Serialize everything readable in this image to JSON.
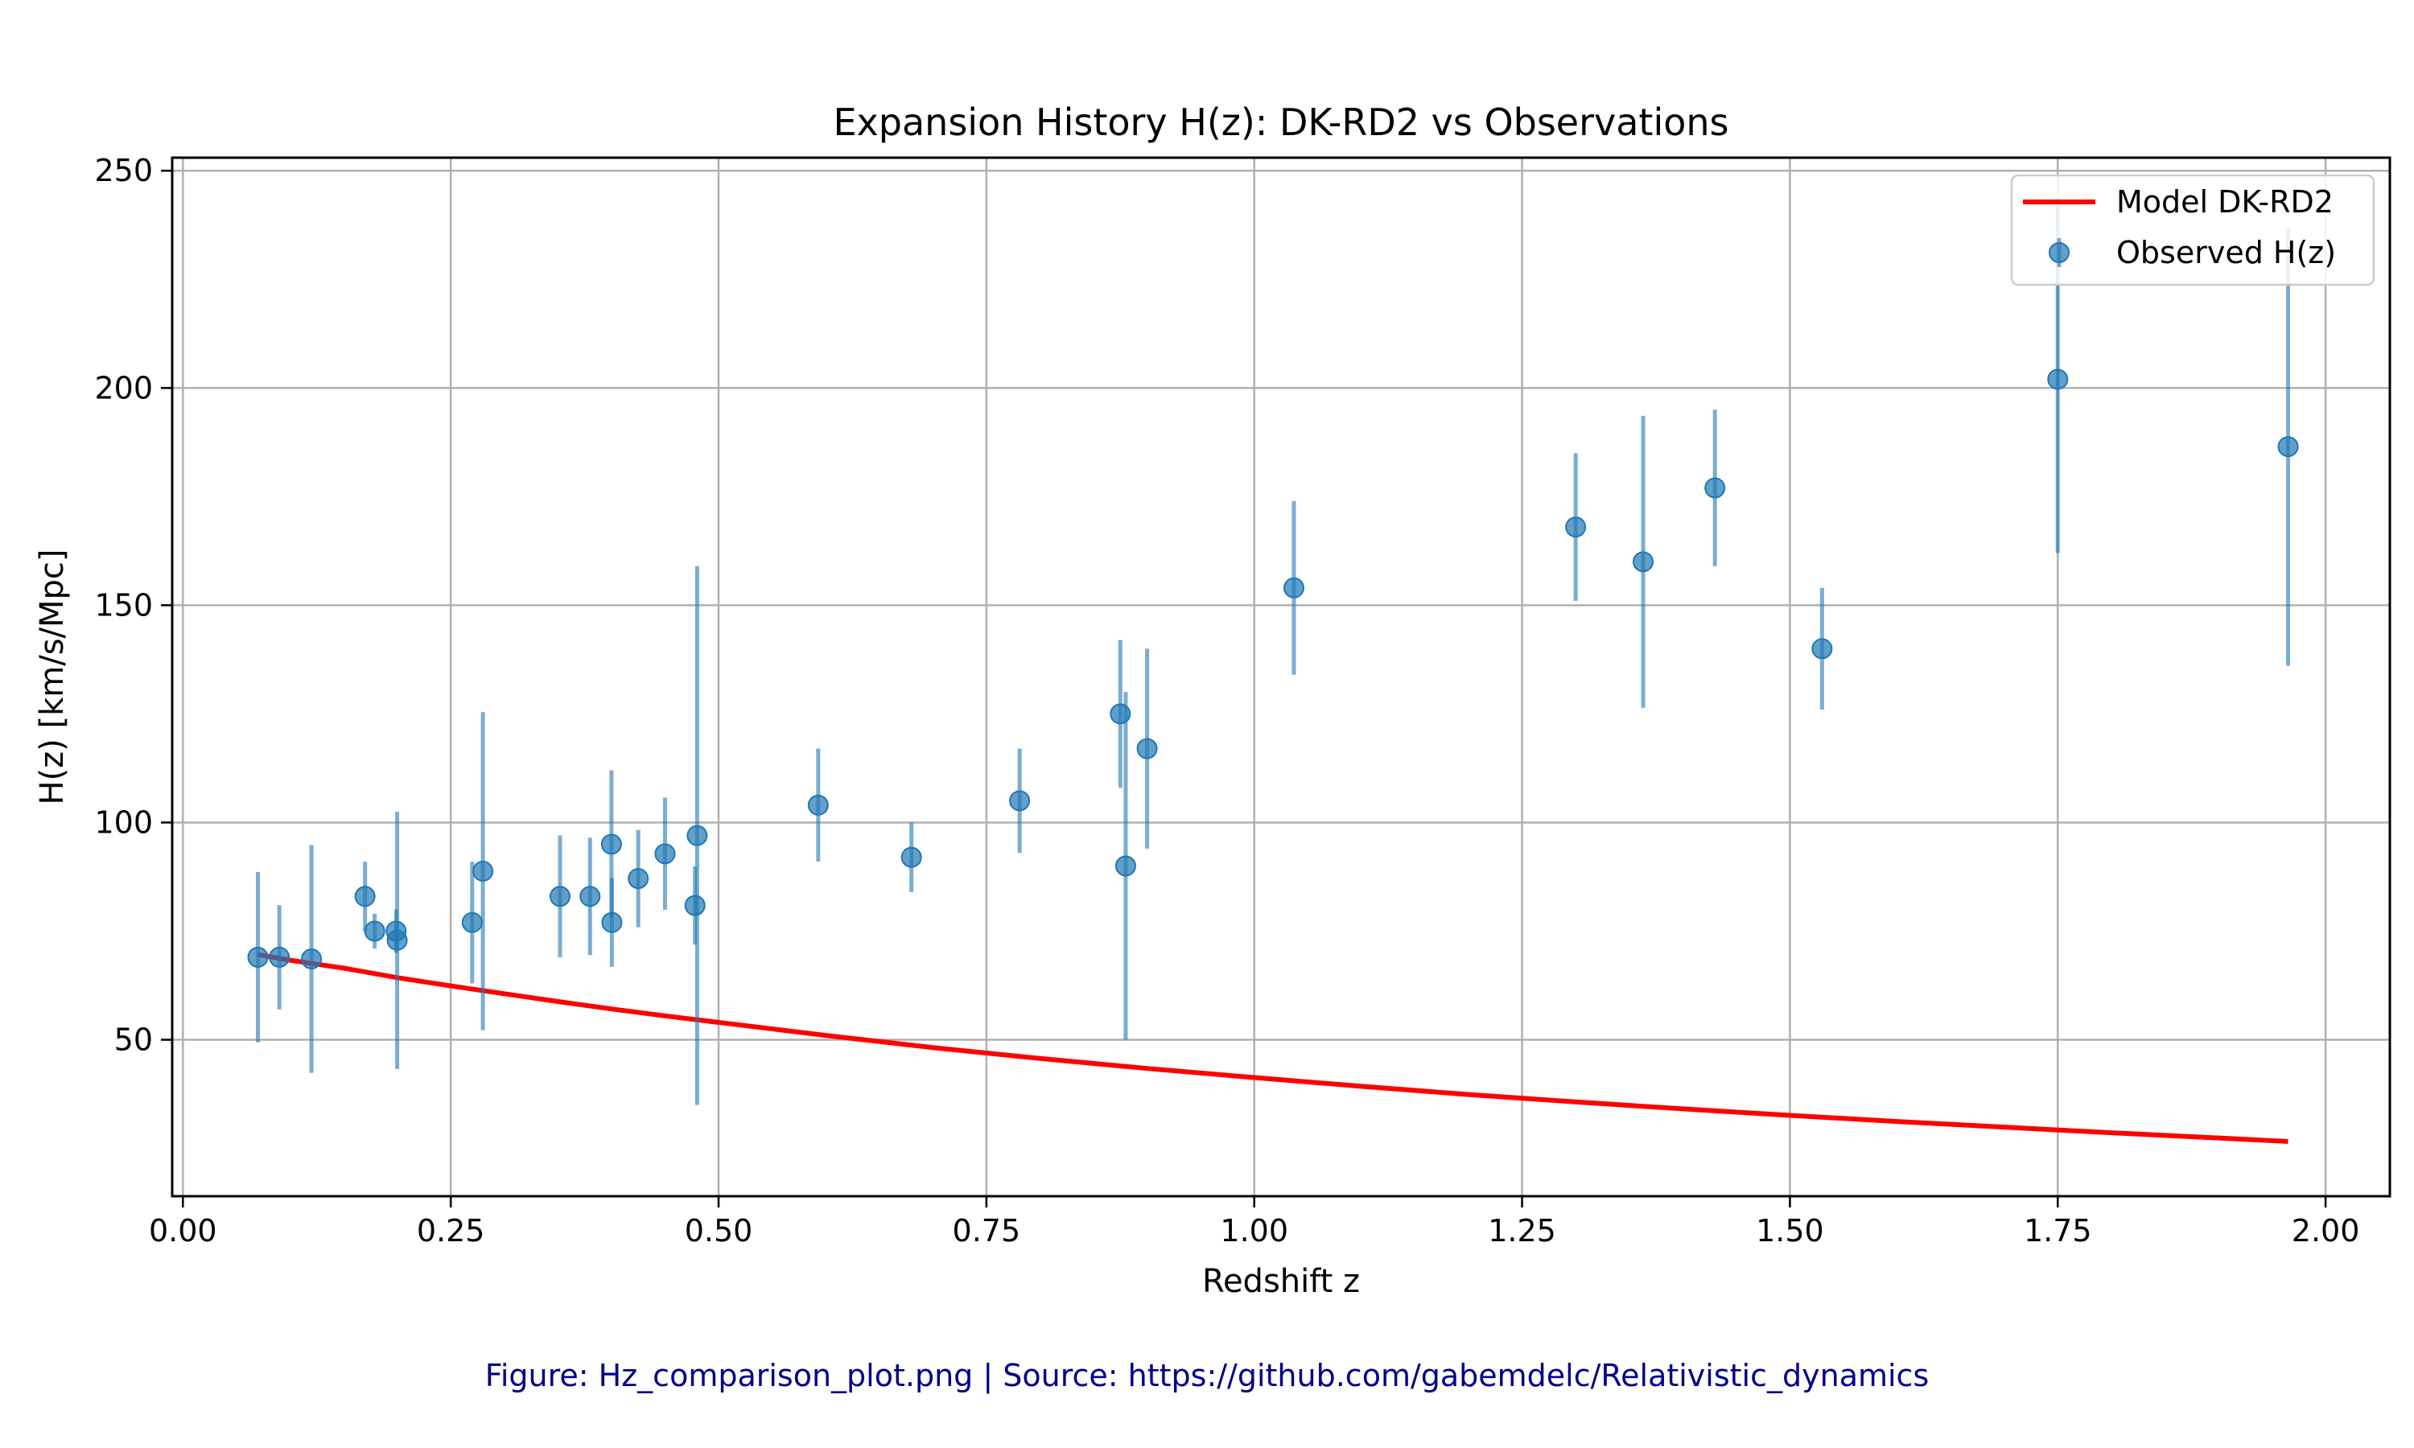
{
  "chart_data": {
    "type": "scatter",
    "title": "Expansion History H(z): DK-RD2 vs Observations",
    "xlabel": "Redshift z",
    "ylabel": "H(z) [km/s/Mpc]",
    "xlim": [
      -0.01,
      2.06
    ],
    "ylim": [
      14,
      253
    ],
    "xticks": [
      "0.00",
      "0.25",
      "0.50",
      "0.75",
      "1.00",
      "1.25",
      "1.50",
      "1.75",
      "2.00"
    ],
    "yticks": [
      "50",
      "100",
      "150",
      "200",
      "250"
    ],
    "grid": true,
    "legend_position": "top-right",
    "colors": {
      "model": "#ff0000",
      "observed": "#1f77b4",
      "caption": "#00008b"
    },
    "series": [
      {
        "name": "Model DK-RD2",
        "kind": "line",
        "x": [
          0.07,
          0.1,
          0.15,
          0.2,
          0.25,
          0.3,
          0.35,
          0.4,
          0.45,
          0.5,
          0.6,
          0.7,
          0.8,
          0.9,
          1.0,
          1.1,
          1.2,
          1.3,
          1.4,
          1.5,
          1.6,
          1.7,
          1.8,
          1.9,
          1.965
        ],
        "y": [
          69.6,
          68.3,
          66.5,
          64.3,
          62.4,
          60.6,
          58.8,
          57.1,
          55.5,
          54.0,
          51.0,
          48.2,
          45.7,
          43.4,
          41.3,
          39.3,
          37.4,
          35.7,
          34.1,
          32.6,
          31.2,
          29.9,
          28.6,
          27.4,
          26.6
        ]
      },
      {
        "name": "Observed H(z)",
        "kind": "errorbar",
        "points": [
          {
            "x": 0.07,
            "y": 69,
            "err": 19.6
          },
          {
            "x": 0.09,
            "y": 69,
            "err": 12
          },
          {
            "x": 0.12,
            "y": 68.6,
            "err": 26.2
          },
          {
            "x": 0.17,
            "y": 83,
            "err": 8
          },
          {
            "x": 0.179,
            "y": 75,
            "err": 4
          },
          {
            "x": 0.199,
            "y": 75,
            "err": 5
          },
          {
            "x": 0.2,
            "y": 72.9,
            "err": 29.6
          },
          {
            "x": 0.27,
            "y": 77,
            "err": 14
          },
          {
            "x": 0.28,
            "y": 88.8,
            "err": 36.6
          },
          {
            "x": 0.352,
            "y": 83,
            "err": 14
          },
          {
            "x": 0.38,
            "y": 83,
            "err": 13.5
          },
          {
            "x": 0.4,
            "y": 95,
            "err": 17
          },
          {
            "x": 0.4004,
            "y": 77,
            "err": 10.2
          },
          {
            "x": 0.425,
            "y": 87.1,
            "err": 11.2
          },
          {
            "x": 0.45,
            "y": 92.8,
            "err": 12.9
          },
          {
            "x": 0.478,
            "y": 80.9,
            "err": 9
          },
          {
            "x": 0.48,
            "y": 97,
            "err": 62
          },
          {
            "x": 0.593,
            "y": 104,
            "err": 13
          },
          {
            "x": 0.68,
            "y": 92,
            "err": 8
          },
          {
            "x": 0.781,
            "y": 105,
            "err": 12
          },
          {
            "x": 0.875,
            "y": 125,
            "err": 17
          },
          {
            "x": 0.88,
            "y": 90,
            "err": 40
          },
          {
            "x": 0.9,
            "y": 117,
            "err": 23
          },
          {
            "x": 1.037,
            "y": 154,
            "err": 20
          },
          {
            "x": 1.3,
            "y": 168,
            "err": 17
          },
          {
            "x": 1.363,
            "y": 160,
            "err": 33.6
          },
          {
            "x": 1.43,
            "y": 177,
            "err": 18
          },
          {
            "x": 1.53,
            "y": 140,
            "err": 14
          },
          {
            "x": 1.75,
            "y": 202,
            "err": 40
          },
          {
            "x": 1.965,
            "y": 186.5,
            "err": 50.4
          }
        ]
      }
    ]
  },
  "caption": "Figure: Hz_comparison_plot.png | Source: https://github.com/gabemdelc/Relativistic_dynamics"
}
